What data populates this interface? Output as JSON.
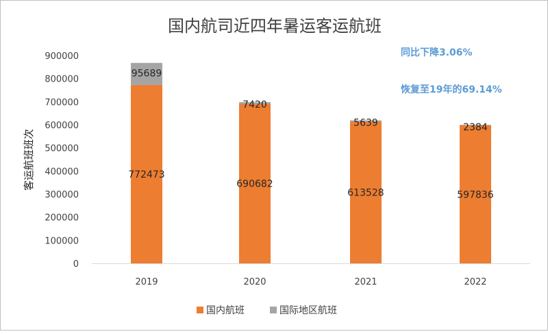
{
  "chart_data": {
    "type": "bar",
    "stacked": true,
    "title": "国内航司近四年暑运客运航班",
    "ylabel": "客运航班班次",
    "xlabel": "",
    "categories": [
      "2019",
      "2020",
      "2021",
      "2022"
    ],
    "ylim": [
      0,
      900000
    ],
    "yticks": [
      "0",
      "100000",
      "200000",
      "300000",
      "400000",
      "500000",
      "600000",
      "700000",
      "800000",
      "900000"
    ],
    "grid": false,
    "legend_position": "bottom",
    "series": [
      {
        "name": "国内航班",
        "color": "#ED7D31",
        "values": [
          772473,
          690682,
          613528,
          597836
        ],
        "labels": [
          "772473",
          "690682",
          "613528",
          "597836"
        ]
      },
      {
        "name": "国际地区航班",
        "color": "#A5A5A5",
        "values": [
          95689,
          7420,
          5639,
          2384
        ],
        "labels": [
          "95689",
          "7420",
          "5639",
          "2384"
        ]
      }
    ],
    "annotations": [
      "同比下降3.06%",
      "恢复至19年的69.14%"
    ],
    "annotation_color": "#5B9BD5"
  }
}
